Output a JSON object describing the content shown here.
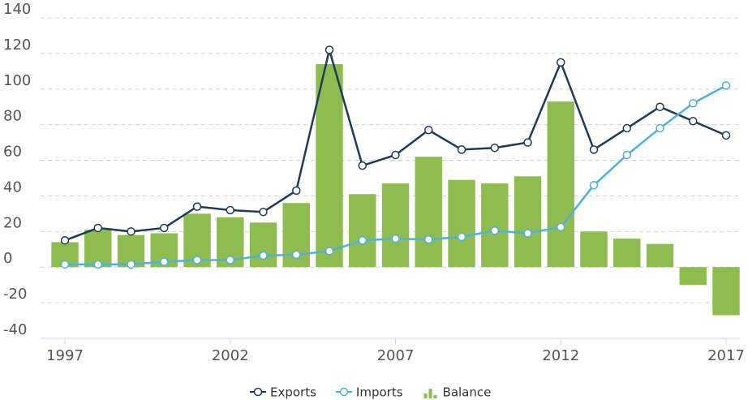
{
  "chart_data": {
    "type": "bar-line",
    "x": [
      1997,
      1998,
      1999,
      2000,
      2001,
      2002,
      2003,
      2004,
      2005,
      2006,
      2007,
      2008,
      2009,
      2010,
      2011,
      2012,
      2013,
      2014,
      2015,
      2016,
      2017
    ],
    "xlim": [
      1997,
      2017
    ],
    "xticks": [
      1997,
      2002,
      2007,
      2012,
      2017
    ],
    "ylim": [
      -40,
      140
    ],
    "yticks": [
      -40,
      -20,
      0,
      20,
      40,
      60,
      80,
      100,
      120,
      140
    ],
    "grid": true,
    "legend": "bottom",
    "series": [
      {
        "name": "Exports",
        "type": "line",
        "color": "#1f3a5a",
        "values": [
          15,
          22,
          20,
          22,
          34,
          32,
          31,
          43,
          122,
          57,
          63,
          77,
          66,
          67,
          70,
          115,
          66,
          78,
          90,
          82,
          74
        ]
      },
      {
        "name": "Imports",
        "type": "line",
        "color": "#4fb0e0",
        "values": [
          1.5,
          1.5,
          1.5,
          3,
          4,
          4,
          6.5,
          7,
          9,
          15,
          16,
          15.5,
          17,
          20.5,
          19,
          22.5,
          46,
          63,
          78,
          92,
          102
        ]
      },
      {
        "name": "Balance",
        "type": "bar",
        "color": "#8fbc4f",
        "values": [
          14,
          21,
          18,
          19,
          30,
          28,
          25,
          36,
          114,
          41,
          47,
          62,
          49,
          47,
          51,
          93,
          20,
          16,
          13,
          -10,
          -27
        ]
      }
    ]
  }
}
